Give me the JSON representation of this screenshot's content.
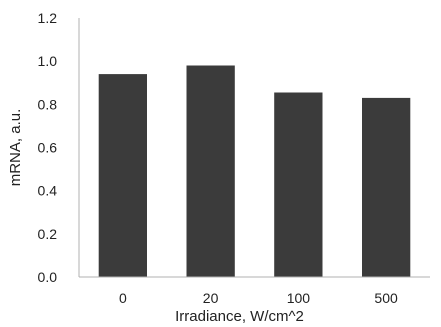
{
  "chart_data": {
    "type": "bar",
    "categories": [
      "0",
      "20",
      "100",
      "500"
    ],
    "values": [
      0.94,
      0.98,
      0.855,
      0.83
    ],
    "xlabel": "Irradiance, W/cm^2",
    "ylabel": "mRNA, a.u.",
    "ylim": [
      0,
      1.2
    ],
    "yticks": [
      "0.0",
      "0.2",
      "0.4",
      "0.6",
      "0.8",
      "1.0",
      "1.2"
    ],
    "grid": false,
    "bar_color": "#3b3b3b",
    "axis_color": "#b0b0b0"
  }
}
